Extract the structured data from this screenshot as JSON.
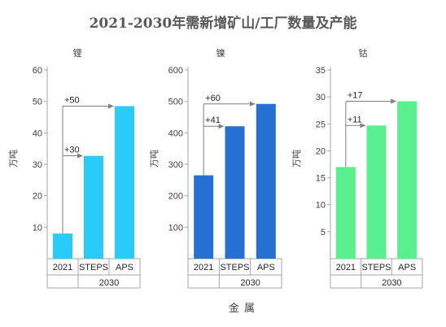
{
  "chart_data": {
    "title": "2021-2030年需新增矿山/工厂数量及产能",
    "xlabel": "金属",
    "panels": [
      {
        "type": "bar",
        "subtitle": "锂",
        "ylabel": "万吨",
        "categories": [
          "2021",
          "STEPS",
          "APS"
        ],
        "group_label": "2030",
        "values": [
          8,
          32.7,
          48.5
        ],
        "ylim": [
          0,
          60
        ],
        "yticks": [
          10,
          20,
          30,
          40,
          50,
          60
        ],
        "color": "#29ccf9",
        "annotations": [
          {
            "label": "+30",
            "target": "STEPS"
          },
          {
            "label": "+50",
            "target": "APS"
          }
        ]
      },
      {
        "type": "bar",
        "subtitle": "镍",
        "ylabel": "万吨",
        "categories": [
          "2021",
          "STEPS",
          "APS"
        ],
        "group_label": "2030",
        "values": [
          265,
          421,
          492
        ],
        "ylim": [
          0,
          600
        ],
        "yticks": [
          100,
          200,
          300,
          400,
          500,
          600
        ],
        "color": "#2670d4",
        "annotations": [
          {
            "label": "+41",
            "target": "STEPS"
          },
          {
            "label": "+60",
            "target": "APS"
          }
        ]
      },
      {
        "type": "bar",
        "subtitle": "钴",
        "ylabel": "万吨",
        "categories": [
          "2021",
          "STEPS",
          "APS"
        ],
        "group_label": "2030",
        "values": [
          17,
          24.7,
          29.2
        ],
        "ylim": [
          0,
          35
        ],
        "yticks": [
          5,
          10,
          15,
          20,
          25,
          30,
          35
        ],
        "color": "#5bf08f",
        "annotations": [
          {
            "label": "+11",
            "target": "STEPS"
          },
          {
            "label": "+17",
            "target": "APS"
          }
        ]
      }
    ]
  }
}
